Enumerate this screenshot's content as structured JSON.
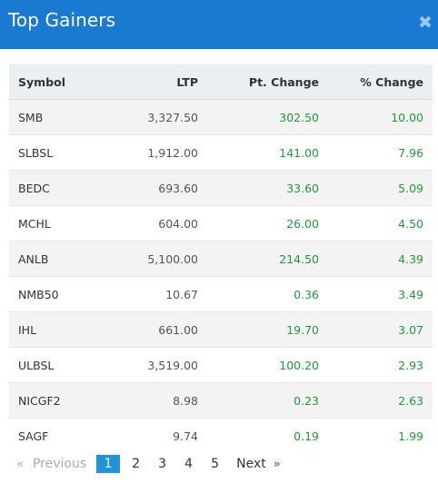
{
  "header": {
    "title": "Top Gainers",
    "close_glyph": "✖"
  },
  "columns": [
    "Symbol",
    "LTP",
    "Pt. Change",
    "% Change"
  ],
  "rows": [
    {
      "symbol": "SMB",
      "ltp": "3,327.50",
      "pt_change": "302.50",
      "pct_change": "10.00"
    },
    {
      "symbol": "SLBSL",
      "ltp": "1,912.00",
      "pt_change": "141.00",
      "pct_change": "7.96"
    },
    {
      "symbol": "BEDC",
      "ltp": "693.60",
      "pt_change": "33.60",
      "pct_change": "5.09"
    },
    {
      "symbol": "MCHL",
      "ltp": "604.00",
      "pt_change": "26.00",
      "pct_change": "4.50"
    },
    {
      "symbol": "ANLB",
      "ltp": "5,100.00",
      "pt_change": "214.50",
      "pct_change": "4.39"
    },
    {
      "symbol": "NMB50",
      "ltp": "10.67",
      "pt_change": "0.36",
      "pct_change": "3.49"
    },
    {
      "symbol": "IHL",
      "ltp": "661.00",
      "pt_change": "19.70",
      "pct_change": "3.07"
    },
    {
      "symbol": "ULBSL",
      "ltp": "3,519.00",
      "pt_change": "100.20",
      "pct_change": "2.93"
    },
    {
      "symbol": "NICGF2",
      "ltp": "8.98",
      "pt_change": "0.23",
      "pct_change": "2.63"
    },
    {
      "symbol": "SAGF",
      "ltp": "9.74",
      "pt_change": "0.19",
      "pct_change": "1.99"
    }
  ],
  "pagination": {
    "prev_arrow": "«",
    "prev_label": "Previous",
    "pages": [
      "1",
      "2",
      "3",
      "4",
      "5"
    ],
    "active_page": "1",
    "next_label": "Next",
    "next_arrow": "»"
  },
  "colors": {
    "header_bg": "#1a7ad2",
    "positive": "#1f9a3b",
    "active_page_bg": "#2193d8"
  }
}
